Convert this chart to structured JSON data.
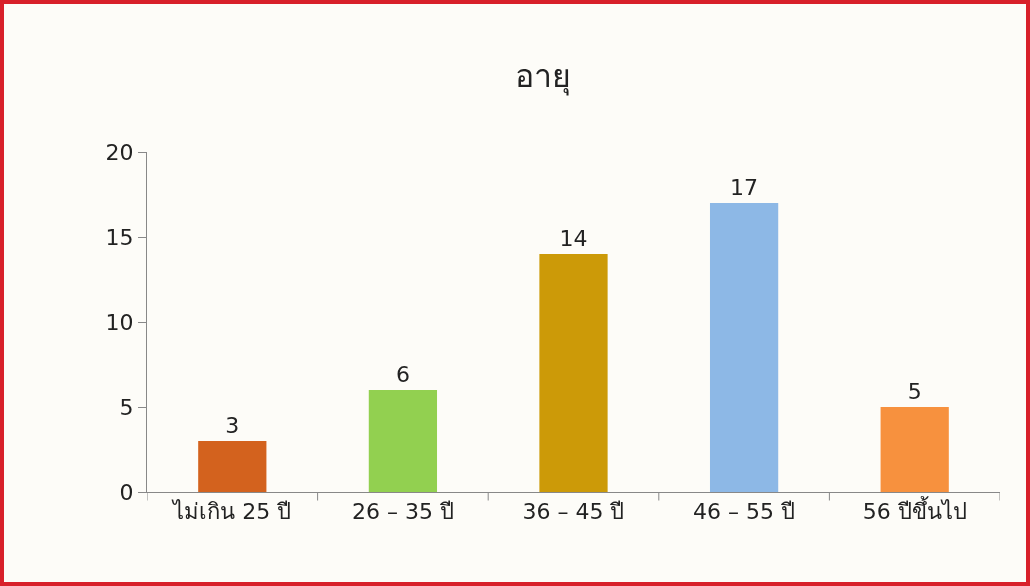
{
  "chart_data": {
    "type": "bar",
    "title": "อายุ",
    "categories": [
      "ไม่เกิน 25 ปี",
      "26 – 35 ปี",
      "36 – 45 ปี",
      "46 – 55 ปี",
      "56 ปีขึ้นไป"
    ],
    "values": [
      3,
      6,
      14,
      17,
      5
    ],
    "colors": [
      "#d3621e",
      "#92d050",
      "#cc9a08",
      "#8db8e6",
      "#f7913e"
    ],
    "ylim": [
      0,
      20
    ],
    "yticks": [
      0,
      5,
      10,
      15,
      20
    ],
    "grid": false,
    "data_labels": true
  }
}
